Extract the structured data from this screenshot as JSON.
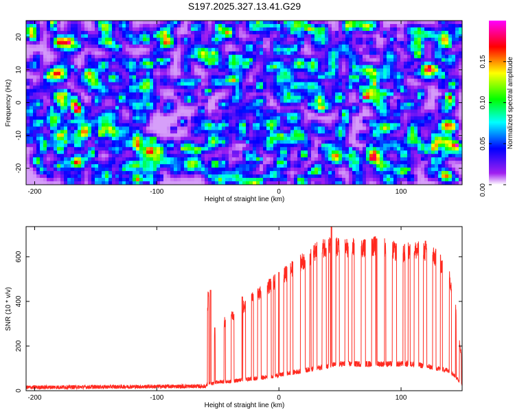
{
  "figure_title": "S197.2025.327.13.41.G29",
  "colors": {
    "series_line": "#ff2a20",
    "axis": "#000000",
    "background": "#ffffff"
  },
  "chart_data": [
    {
      "type": "heatmap",
      "title": "S197.2025.327.13.41.G29",
      "xlabel": "Height of straight line (km)",
      "ylabel": "Frequency (Hz)",
      "xlim": [
        -207,
        150
      ],
      "ylim": [
        -25,
        25
      ],
      "x_ticks": [
        -200,
        -100,
        0,
        100
      ],
      "x_tick_labels": [
        "-200",
        "-100",
        "0",
        "100"
      ],
      "y_ticks": [
        -20,
        -10,
        0,
        10,
        20
      ],
      "y_tick_labels": [
        "-20",
        "-10",
        "0",
        "10",
        "20"
      ],
      "colorbar": {
        "label": "Normalized spectral amplitude",
        "range": [
          0,
          0.2
        ],
        "ticks": [
          0.0,
          0.05,
          0.1,
          0.15
        ],
        "tick_labels": [
          "0.00",
          "0.05",
          "0.10",
          "0.15"
        ],
        "colors": [
          "#ffffff",
          "#a020f0",
          "#0000ff",
          "#00ffff",
          "#00ff00",
          "#ffff00",
          "#ff0000",
          "#ff00ff"
        ]
      },
      "description_values": {
        "typical_amplitude_range": [
          0.01,
          0.07
        ],
        "peak_amplitude": 0.19,
        "peak_location": {
          "x": 146,
          "y": -13
        }
      }
    },
    {
      "type": "line",
      "xlabel": "Height of straight line (km)",
      "ylabel": "SNR (10 * v/v)",
      "xlim": [
        -207,
        150
      ],
      "ylim": [
        0,
        735
      ],
      "x_ticks": [
        -200,
        -100,
        0,
        100
      ],
      "x_tick_labels": [
        "-200",
        "-100",
        "0",
        "100"
      ],
      "y_ticks": [
        0,
        200,
        400,
        600
      ],
      "y_tick_labels": [
        "0",
        "200",
        "400",
        "600"
      ],
      "series": [
        {
          "name": "SNR",
          "profile_x": [
            -207,
            -65,
            -60,
            -58,
            -55,
            -50,
            -40,
            -30,
            -20,
            -10,
            0,
            10,
            20,
            30,
            40,
            50,
            60,
            70,
            80,
            90,
            100,
            110,
            120,
            130,
            140,
            145,
            148,
            150
          ],
          "profile_high": [
            15,
            20,
            40,
            440,
            250,
            280,
            330,
            370,
            420,
            460,
            500,
            540,
            580,
            620,
            650,
            640,
            640,
            640,
            650,
            640,
            610,
            630,
            620,
            590,
            500,
            350,
            220,
            120
          ],
          "profile_low": [
            15,
            20,
            20,
            30,
            30,
            40,
            40,
            50,
            55,
            60,
            70,
            80,
            90,
            100,
            110,
            120,
            120,
            120,
            120,
            120,
            120,
            120,
            110,
            100,
            90,
            60,
            40,
            30
          ],
          "spike_peaks": [
            {
              "x": -56,
              "y": 450
            },
            {
              "x": -30,
              "y": 420
            },
            {
              "x": 0,
              "y": 530
            },
            {
              "x": 43,
              "y": 735
            },
            {
              "x": 80,
              "y": 680
            },
            {
              "x": 120,
              "y": 670
            }
          ]
        }
      ]
    }
  ]
}
